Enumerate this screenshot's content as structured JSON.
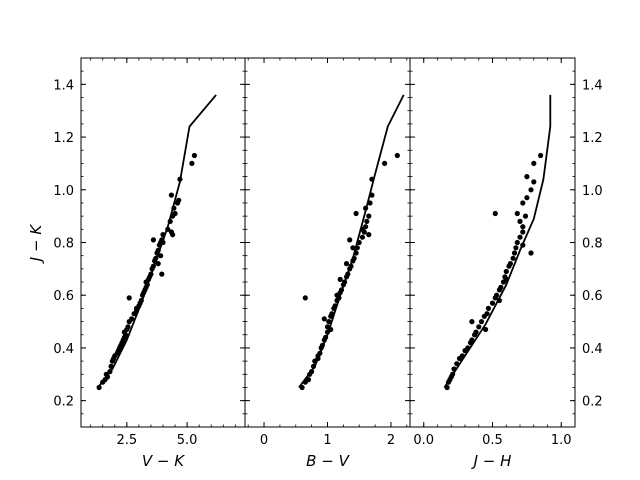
{
  "chart_data": {
    "type": "scatter",
    "layout": "three panels sharing the y axis",
    "ylabel": "J − K",
    "ylim": [
      0.1,
      1.5
    ],
    "ytick_labels": [
      "0.2",
      "0.4",
      "0.6",
      "0.8",
      "1.0",
      "1.2",
      "1.4"
    ],
    "grid": false,
    "legend": "none",
    "marker_color": "#000000",
    "line_color": "#000000",
    "panels": [
      {
        "xlabel": "V − K",
        "xlim": [
          0.6,
          7.4
        ],
        "xtick_labels": [
          "2.5",
          "5.0"
        ],
        "curve": [
          [
            1.3,
            0.25
          ],
          [
            1.9,
            0.32
          ],
          [
            2.5,
            0.43
          ],
          [
            3.1,
            0.57
          ],
          [
            3.7,
            0.73
          ],
          [
            4.2,
            0.86
          ],
          [
            4.7,
            1.03
          ],
          [
            5.1,
            1.24
          ],
          [
            6.2,
            1.36
          ]
        ],
        "points": [
          [
            1.35,
            0.25
          ],
          [
            1.5,
            0.27
          ],
          [
            1.6,
            0.28
          ],
          [
            1.65,
            0.3
          ],
          [
            1.7,
            0.29
          ],
          [
            1.8,
            0.31
          ],
          [
            1.85,
            0.33
          ],
          [
            1.9,
            0.35
          ],
          [
            1.95,
            0.36
          ],
          [
            2.0,
            0.37
          ],
          [
            2.1,
            0.38
          ],
          [
            2.15,
            0.39
          ],
          [
            2.2,
            0.4
          ],
          [
            2.25,
            0.41
          ],
          [
            2.3,
            0.42
          ],
          [
            2.35,
            0.43
          ],
          [
            2.4,
            0.44
          ],
          [
            2.45,
            0.45
          ],
          [
            2.5,
            0.47
          ],
          [
            2.55,
            0.48
          ],
          [
            2.6,
            0.5
          ],
          [
            2.6,
            0.59
          ],
          [
            2.7,
            0.51
          ],
          [
            2.8,
            0.53
          ],
          [
            2.9,
            0.54
          ],
          [
            3.0,
            0.56
          ],
          [
            3.05,
            0.57
          ],
          [
            3.1,
            0.58
          ],
          [
            3.15,
            0.6
          ],
          [
            3.2,
            0.61
          ],
          [
            3.25,
            0.62
          ],
          [
            3.3,
            0.63
          ],
          [
            3.35,
            0.64
          ],
          [
            3.4,
            0.66
          ],
          [
            3.45,
            0.67
          ],
          [
            3.5,
            0.68
          ],
          [
            3.55,
            0.7
          ],
          [
            3.6,
            0.71
          ],
          [
            3.65,
            0.73
          ],
          [
            3.7,
            0.74
          ],
          [
            3.75,
            0.76
          ],
          [
            3.8,
            0.77
          ],
          [
            3.85,
            0.79
          ],
          [
            3.9,
            0.8
          ],
          [
            3.6,
            0.81
          ],
          [
            3.95,
            0.81
          ],
          [
            3.95,
            0.68
          ],
          [
            4.0,
            0.83
          ],
          [
            4.2,
            0.85
          ],
          [
            4.3,
            0.88
          ],
          [
            4.35,
            0.84
          ],
          [
            4.4,
            0.9
          ],
          [
            4.5,
            0.91
          ],
          [
            4.45,
            0.93
          ],
          [
            4.6,
            0.95
          ],
          [
            4.65,
            0.96
          ],
          [
            4.35,
            0.98
          ],
          [
            4.7,
            1.04
          ],
          [
            5.2,
            1.1
          ],
          [
            5.3,
            1.13
          ],
          [
            3.8,
            0.72
          ],
          [
            3.3,
            0.65
          ],
          [
            2.9,
            0.55
          ],
          [
            2.4,
            0.46
          ],
          [
            4.4,
            0.83
          ],
          [
            4.0,
            0.8
          ],
          [
            3.9,
            0.75
          ]
        ]
      },
      {
        "xlabel": "B − V",
        "xlim": [
          -0.3,
          2.3
        ],
        "xtick_labels": [
          "0",
          "1",
          "2"
        ],
        "curve": [
          [
            0.55,
            0.25
          ],
          [
            0.8,
            0.33
          ],
          [
            1.0,
            0.45
          ],
          [
            1.2,
            0.6
          ],
          [
            1.4,
            0.74
          ],
          [
            1.6,
            0.92
          ],
          [
            1.75,
            1.06
          ],
          [
            1.95,
            1.24
          ],
          [
            2.2,
            1.36
          ]
        ],
        "points": [
          [
            0.6,
            0.25
          ],
          [
            0.65,
            0.27
          ],
          [
            0.7,
            0.28
          ],
          [
            0.72,
            0.3
          ],
          [
            0.75,
            0.31
          ],
          [
            0.78,
            0.33
          ],
          [
            0.8,
            0.35
          ],
          [
            0.85,
            0.37
          ],
          [
            0.88,
            0.38
          ],
          [
            0.9,
            0.4
          ],
          [
            0.92,
            0.41
          ],
          [
            0.95,
            0.43
          ],
          [
            0.97,
            0.44
          ],
          [
            1.0,
            0.46
          ],
          [
            1.0,
            0.48
          ],
          [
            1.02,
            0.5
          ],
          [
            0.95,
            0.51
          ],
          [
            1.05,
            0.52
          ],
          [
            1.07,
            0.53
          ],
          [
            1.1,
            0.55
          ],
          [
            1.12,
            0.56
          ],
          [
            1.15,
            0.58
          ],
          [
            1.18,
            0.59
          ],
          [
            1.2,
            0.61
          ],
          [
            1.22,
            0.62
          ],
          [
            1.25,
            0.64
          ],
          [
            1.27,
            0.65
          ],
          [
            1.3,
            0.67
          ],
          [
            1.32,
            0.68
          ],
          [
            1.35,
            0.7
          ],
          [
            1.37,
            0.71
          ],
          [
            1.4,
            0.73
          ],
          [
            1.42,
            0.74
          ],
          [
            1.45,
            0.76
          ],
          [
            1.47,
            0.78
          ],
          [
            1.5,
            0.8
          ],
          [
            1.35,
            0.81
          ],
          [
            1.55,
            0.82
          ],
          [
            1.58,
            0.84
          ],
          [
            1.6,
            0.86
          ],
          [
            1.62,
            0.88
          ],
          [
            1.65,
            0.9
          ],
          [
            1.45,
            0.91
          ],
          [
            1.6,
            0.93
          ],
          [
            1.67,
            0.95
          ],
          [
            1.7,
            0.98
          ],
          [
            1.7,
            1.04
          ],
          [
            1.9,
            1.1
          ],
          [
            2.1,
            1.13
          ],
          [
            0.65,
            0.59
          ],
          [
            1.2,
            0.66
          ],
          [
            1.15,
            0.6
          ],
          [
            1.3,
            0.72
          ],
          [
            1.4,
            0.78
          ],
          [
            1.65,
            0.83
          ],
          [
            1.55,
            0.85
          ],
          [
            1.05,
            0.47
          ],
          [
            0.85,
            0.36
          ]
        ]
      },
      {
        "xlabel": "J − H",
        "xlim": [
          -0.1,
          1.1
        ],
        "xtick_labels": [
          "0.0",
          "0.5",
          "1.0"
        ],
        "curve": [
          [
            0.15,
            0.25
          ],
          [
            0.3,
            0.37
          ],
          [
            0.45,
            0.49
          ],
          [
            0.6,
            0.64
          ],
          [
            0.7,
            0.77
          ],
          [
            0.8,
            0.89
          ],
          [
            0.87,
            1.04
          ],
          [
            0.92,
            1.24
          ],
          [
            0.92,
            1.36
          ]
        ],
        "points": [
          [
            0.17,
            0.25
          ],
          [
            0.18,
            0.27
          ],
          [
            0.19,
            0.28
          ],
          [
            0.2,
            0.29
          ],
          [
            0.21,
            0.3
          ],
          [
            0.22,
            0.32
          ],
          [
            0.24,
            0.34
          ],
          [
            0.26,
            0.36
          ],
          [
            0.28,
            0.37
          ],
          [
            0.3,
            0.39
          ],
          [
            0.32,
            0.4
          ],
          [
            0.34,
            0.42
          ],
          [
            0.35,
            0.43
          ],
          [
            0.37,
            0.45
          ],
          [
            0.38,
            0.46
          ],
          [
            0.4,
            0.48
          ],
          [
            0.35,
            0.5
          ],
          [
            0.42,
            0.5
          ],
          [
            0.44,
            0.52
          ],
          [
            0.46,
            0.53
          ],
          [
            0.47,
            0.55
          ],
          [
            0.5,
            0.57
          ],
          [
            0.52,
            0.59
          ],
          [
            0.53,
            0.6
          ],
          [
            0.55,
            0.62
          ],
          [
            0.56,
            0.63
          ],
          [
            0.58,
            0.65
          ],
          [
            0.59,
            0.67
          ],
          [
            0.6,
            0.69
          ],
          [
            0.62,
            0.71
          ],
          [
            0.63,
            0.72
          ],
          [
            0.65,
            0.74
          ],
          [
            0.66,
            0.76
          ],
          [
            0.67,
            0.78
          ],
          [
            0.68,
            0.8
          ],
          [
            0.7,
            0.82
          ],
          [
            0.72,
            0.84
          ],
          [
            0.72,
            0.86
          ],
          [
            0.7,
            0.88
          ],
          [
            0.74,
            0.9
          ],
          [
            0.52,
            0.91
          ],
          [
            0.68,
            0.91
          ],
          [
            0.72,
            0.95
          ],
          [
            0.75,
            0.97
          ],
          [
            0.78,
            1.0
          ],
          [
            0.8,
            1.03
          ],
          [
            0.75,
            1.05
          ],
          [
            0.8,
            1.1
          ],
          [
            0.85,
            1.13
          ],
          [
            0.78,
            0.76
          ],
          [
            0.72,
            0.79
          ],
          [
            0.6,
            0.66
          ],
          [
            0.55,
            0.58
          ],
          [
            0.45,
            0.47
          ]
        ]
      }
    ]
  }
}
